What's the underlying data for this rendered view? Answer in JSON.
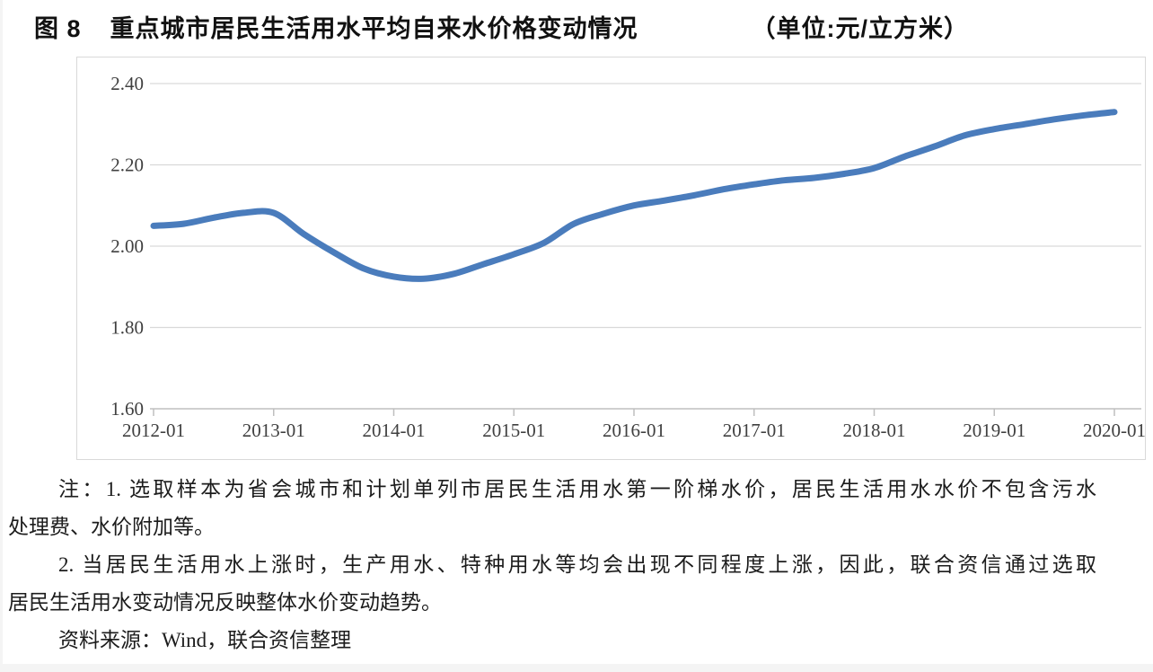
{
  "figure": {
    "label": "图 8",
    "title": "重点城市居民生活用水平均自来水价格变动情况",
    "unit": "（单位:元/立方米）"
  },
  "chart_data": {
    "type": "line",
    "title": "重点城市居民生活用水平均自来水价格变动情况",
    "unit_label": "元/立方米",
    "x_ticks": [
      "2012-01",
      "2013-01",
      "2014-01",
      "2015-01",
      "2016-01",
      "2017-01",
      "2018-01",
      "2019-01",
      "2020-01"
    ],
    "y_ticks": [
      "2.40",
      "2.20",
      "2.00",
      "1.80",
      "1.60"
    ],
    "ylim": [
      1.6,
      2.4
    ],
    "grid": true,
    "legend": "none",
    "colors": {
      "line": "#4a7cbc",
      "gridline": "#d9d9d9",
      "axis": "#bfbfbf",
      "tick_label": "#404040",
      "frame_border": "#d9d9d9"
    },
    "series": [
      {
        "points": [
          [
            "2012-01",
            2.05
          ],
          [
            "2012-04",
            2.055
          ],
          [
            "2012-07",
            2.07
          ],
          [
            "2012-10",
            2.082
          ],
          [
            "2013-01",
            2.082
          ],
          [
            "2013-04",
            2.03
          ],
          [
            "2013-07",
            1.985
          ],
          [
            "2013-10",
            1.945
          ],
          [
            "2014-01",
            1.925
          ],
          [
            "2014-04",
            1.92
          ],
          [
            "2014-07",
            1.932
          ],
          [
            "2014-10",
            1.956
          ],
          [
            "2015-01",
            1.98
          ],
          [
            "2015-04",
            2.008
          ],
          [
            "2015-07",
            2.055
          ],
          [
            "2015-10",
            2.08
          ],
          [
            "2016-01",
            2.1
          ],
          [
            "2016-04",
            2.112
          ],
          [
            "2016-07",
            2.125
          ],
          [
            "2016-10",
            2.14
          ],
          [
            "2017-01",
            2.152
          ],
          [
            "2017-04",
            2.162
          ],
          [
            "2017-07",
            2.168
          ],
          [
            "2017-10",
            2.178
          ],
          [
            "2018-01",
            2.192
          ],
          [
            "2018-04",
            2.22
          ],
          [
            "2018-07",
            2.245
          ],
          [
            "2018-10",
            2.272
          ],
          [
            "2019-01",
            2.288
          ],
          [
            "2019-04",
            2.3
          ],
          [
            "2019-07",
            2.312
          ],
          [
            "2019-10",
            2.322
          ],
          [
            "2020-01",
            2.33
          ]
        ]
      }
    ]
  },
  "notes": {
    "paragraphs": [
      {
        "lines": [
          "注：1. 选取样本为省会城市和计划单列市居民生活用水第一阶梯水价，居民生活用水水价不包含污水",
          "处理费、水价附加等。"
        ]
      },
      {
        "lines": [
          "2. 当居民生活用水上涨时，生产用水、特种用水等均会出现不同程度上涨，因此，联合资信通过选取",
          "居民生活用水变动情况反映整体水价变动趋势。"
        ]
      },
      {
        "lines": [
          "资料来源：Wind，联合资信整理"
        ]
      }
    ]
  }
}
